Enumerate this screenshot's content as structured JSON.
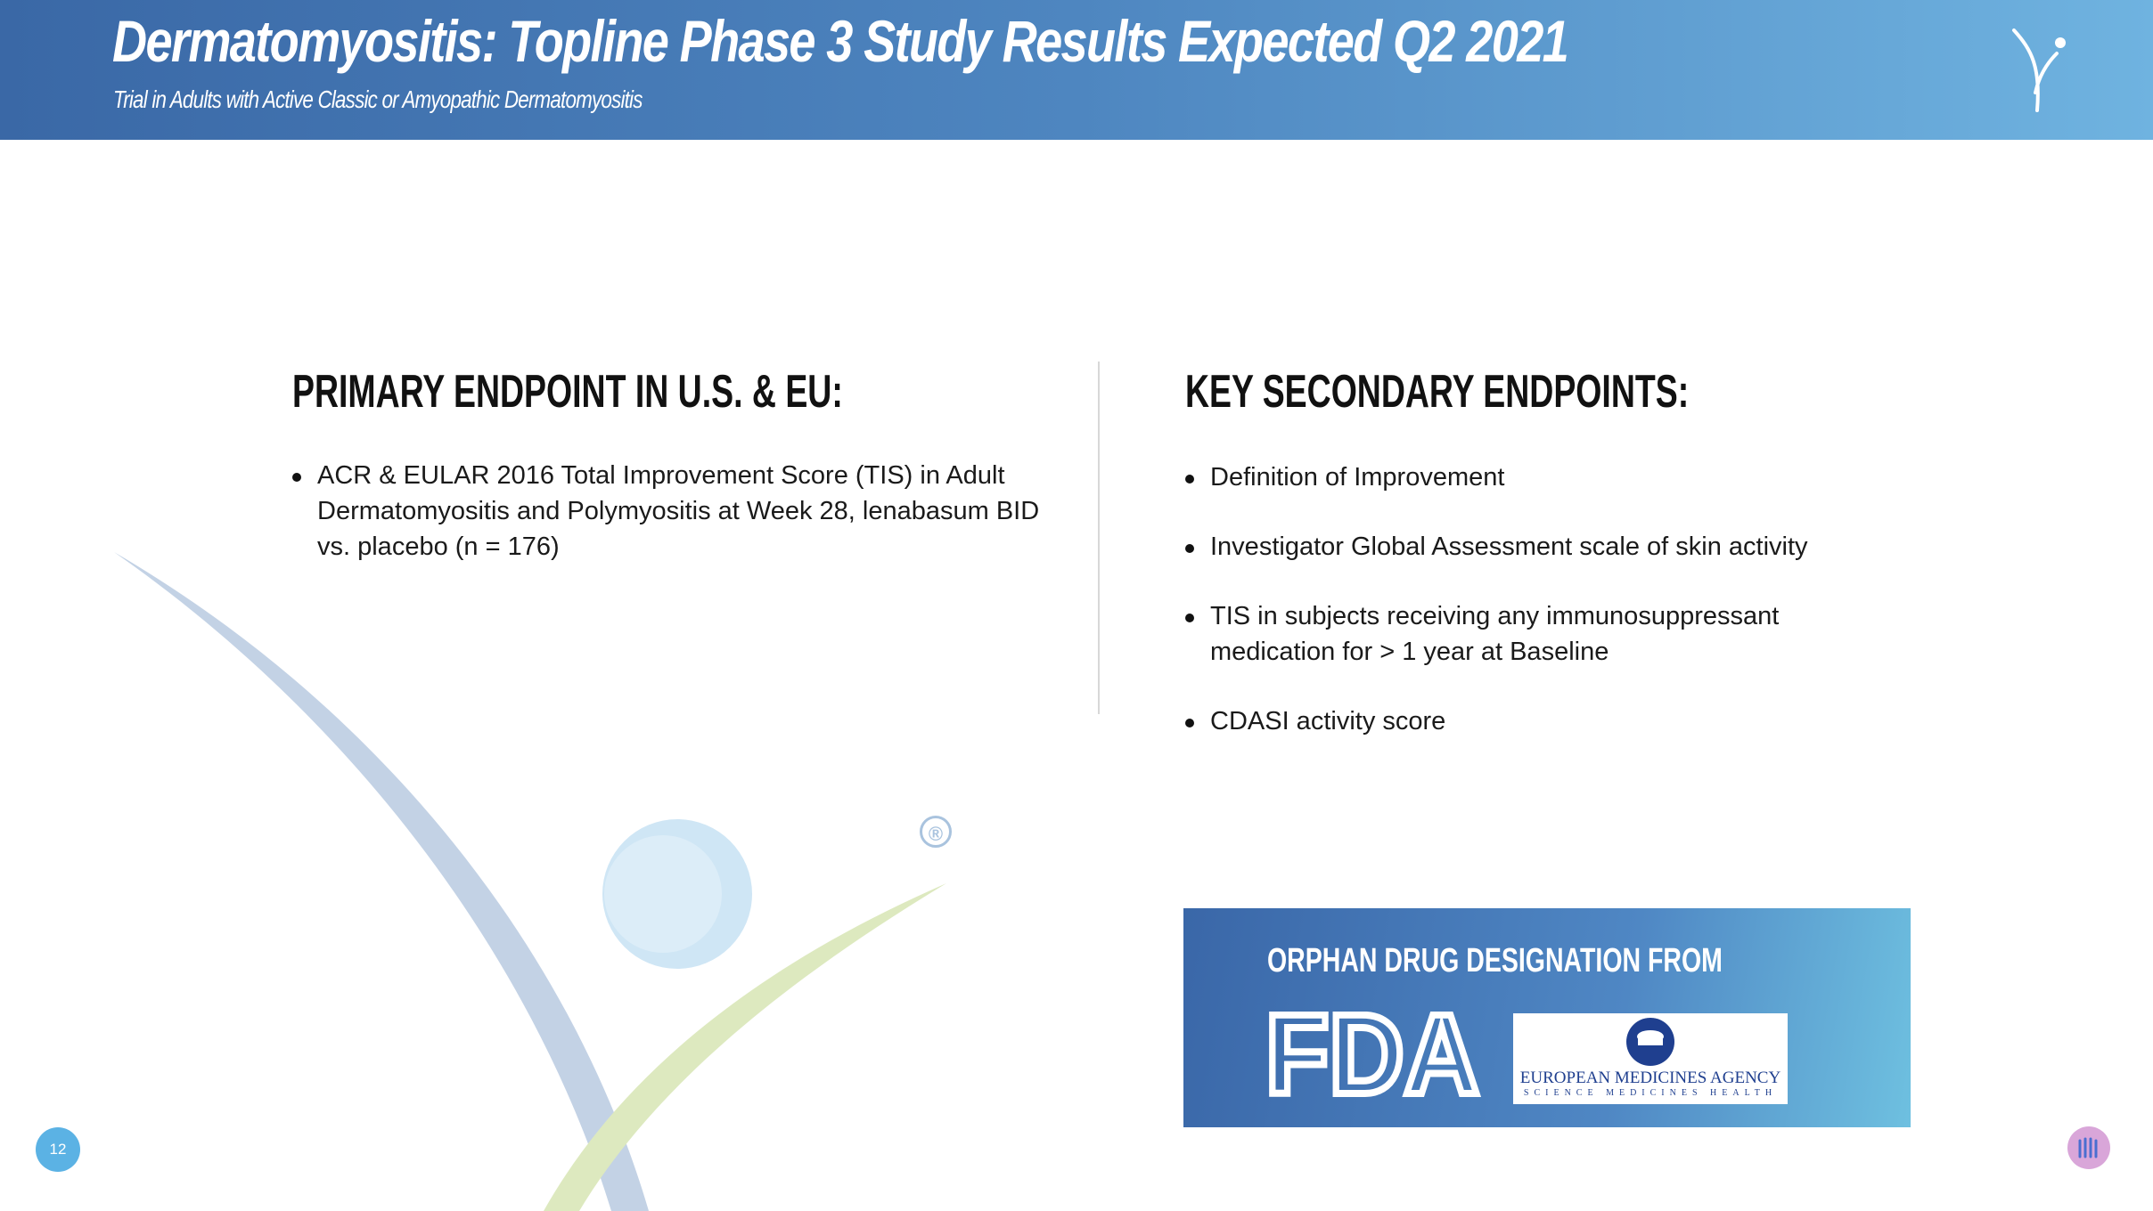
{
  "header": {
    "title": "Dermatomyositis: Topline Phase 3 Study Results Expected Q2 2021",
    "subtitle": "Trial in Adults with Active Classic or Amyopathic Dermatomyositis"
  },
  "primary": {
    "heading": "PRIMARY ENDPOINT IN U.S. & EU:",
    "items": [
      "ACR & EULAR 2016 Total Improvement Score (TIS) in Adult Dermatomyositis and Polymyositis at Week 28, lenabasum BID vs. placebo (n = 176)"
    ]
  },
  "secondary": {
    "heading": "KEY SECONDARY ENDPOINTS:",
    "items": [
      "Definition of Improvement",
      "Investigator Global Assessment scale of skin activity",
      "TIS in subjects receiving any immunosuppressant medication for > 1 year at Baseline",
      "CDASI activity score"
    ]
  },
  "orphan": {
    "title": "ORPHAN DRUG DESIGNATION FROM",
    "fda_logo": "FDA",
    "ema_name": "EUROPEAN MEDICINES AGENCY",
    "ema_tagline": "SCIENCE MEDICINES HEALTH"
  },
  "decor": {
    "registered_mark": "®"
  },
  "footer": {
    "page_number": "12"
  },
  "colors": {
    "header_start": "#3a68a6",
    "header_end": "#6fb3e0",
    "swoosh_blue": "#c3d2e5",
    "swoosh_green": "#dde9bf",
    "circle": "#cfe6f5",
    "page_badge": "#5bb2e4"
  }
}
